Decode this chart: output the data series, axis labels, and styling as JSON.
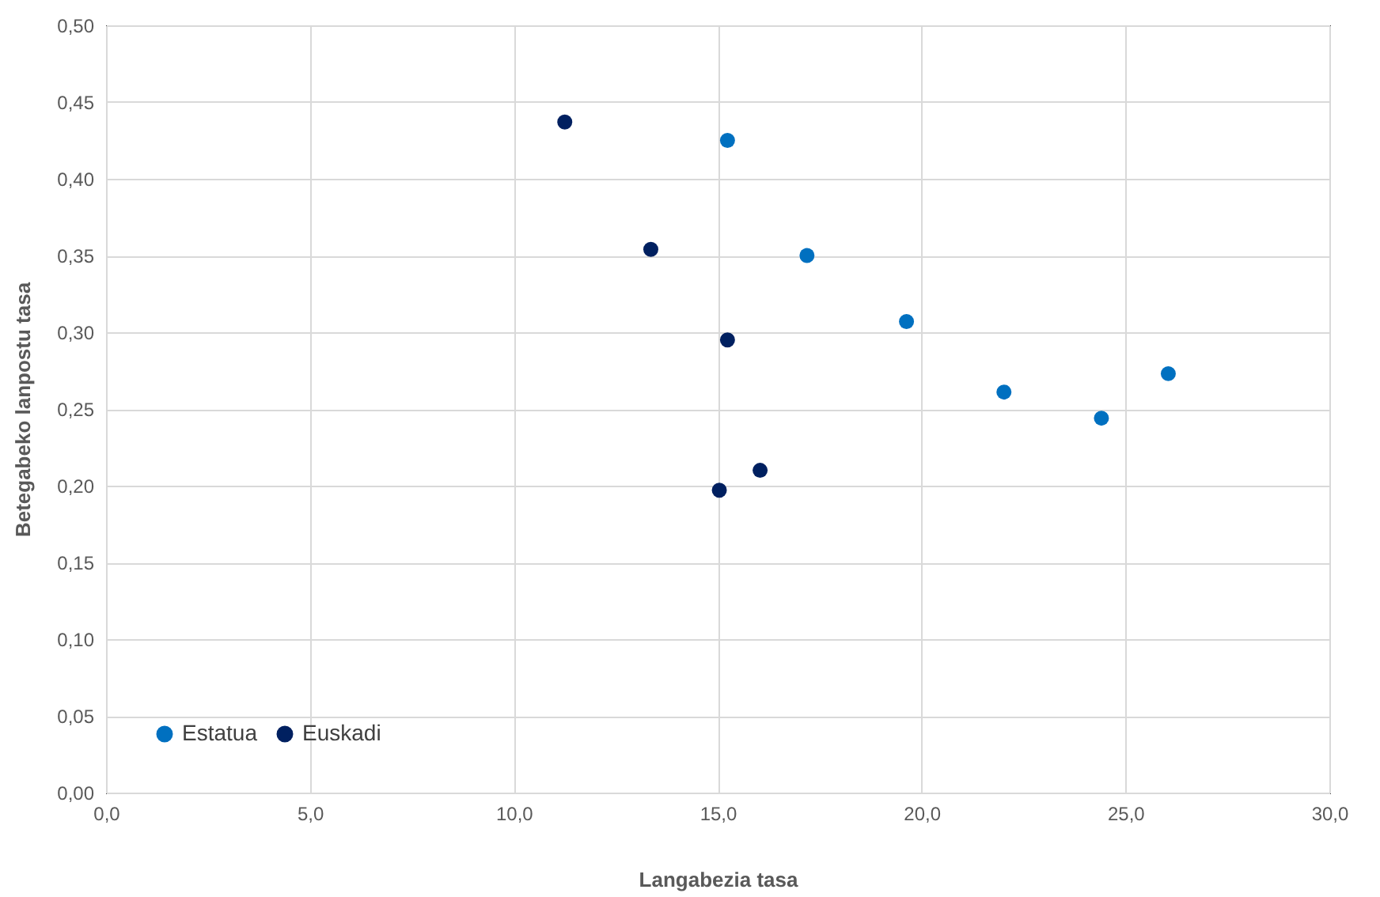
{
  "chart_data": {
    "type": "scatter",
    "xlabel": "Langabezia tasa",
    "ylabel": "Betegabeko lanpostu tasa",
    "series": [
      {
        "name": "Estatua",
        "color": "#0070c0",
        "x": [
          15.24,
          17.19,
          19.63,
          22.02,
          24.41,
          26.05
        ],
        "values": [
          0.425,
          0.35,
          0.307,
          0.261,
          0.244,
          0.273
        ]
      },
      {
        "name": "Euskadi",
        "color": "#002060",
        "x": [
          11.25,
          13.36,
          15.24,
          16.04,
          15.04
        ],
        "values": [
          0.437,
          0.354,
          0.295,
          0.21,
          0.197
        ]
      }
    ],
    "xlim": [
      0,
      30
    ],
    "ylim": [
      0,
      0.5
    ],
    "xticks": [
      {
        "value": 0,
        "label": "0,0"
      },
      {
        "value": 5,
        "label": "5,0"
      },
      {
        "value": 10,
        "label": "10,0"
      },
      {
        "value": 15,
        "label": "15,0"
      },
      {
        "value": 20,
        "label": "20,0"
      },
      {
        "value": 25,
        "label": "25,0"
      },
      {
        "value": 30,
        "label": "30,0"
      }
    ],
    "yticks": [
      {
        "value": 0,
        "label": "0,00"
      },
      {
        "value": 0.05,
        "label": "0,05"
      },
      {
        "value": 0.1,
        "label": "0,10"
      },
      {
        "value": 0.15,
        "label": "0,15"
      },
      {
        "value": 0.2,
        "label": "0,20"
      },
      {
        "value": 0.25,
        "label": "0,25"
      },
      {
        "value": 0.3,
        "label": "0,30"
      },
      {
        "value": 0.35,
        "label": "0,35"
      },
      {
        "value": 0.4,
        "label": "0,40"
      },
      {
        "value": 0.45,
        "label": "0,45"
      },
      {
        "value": 0.5,
        "label": "0,50"
      }
    ],
    "grid": true,
    "legend": "bottom left",
    "marker": "circle"
  }
}
